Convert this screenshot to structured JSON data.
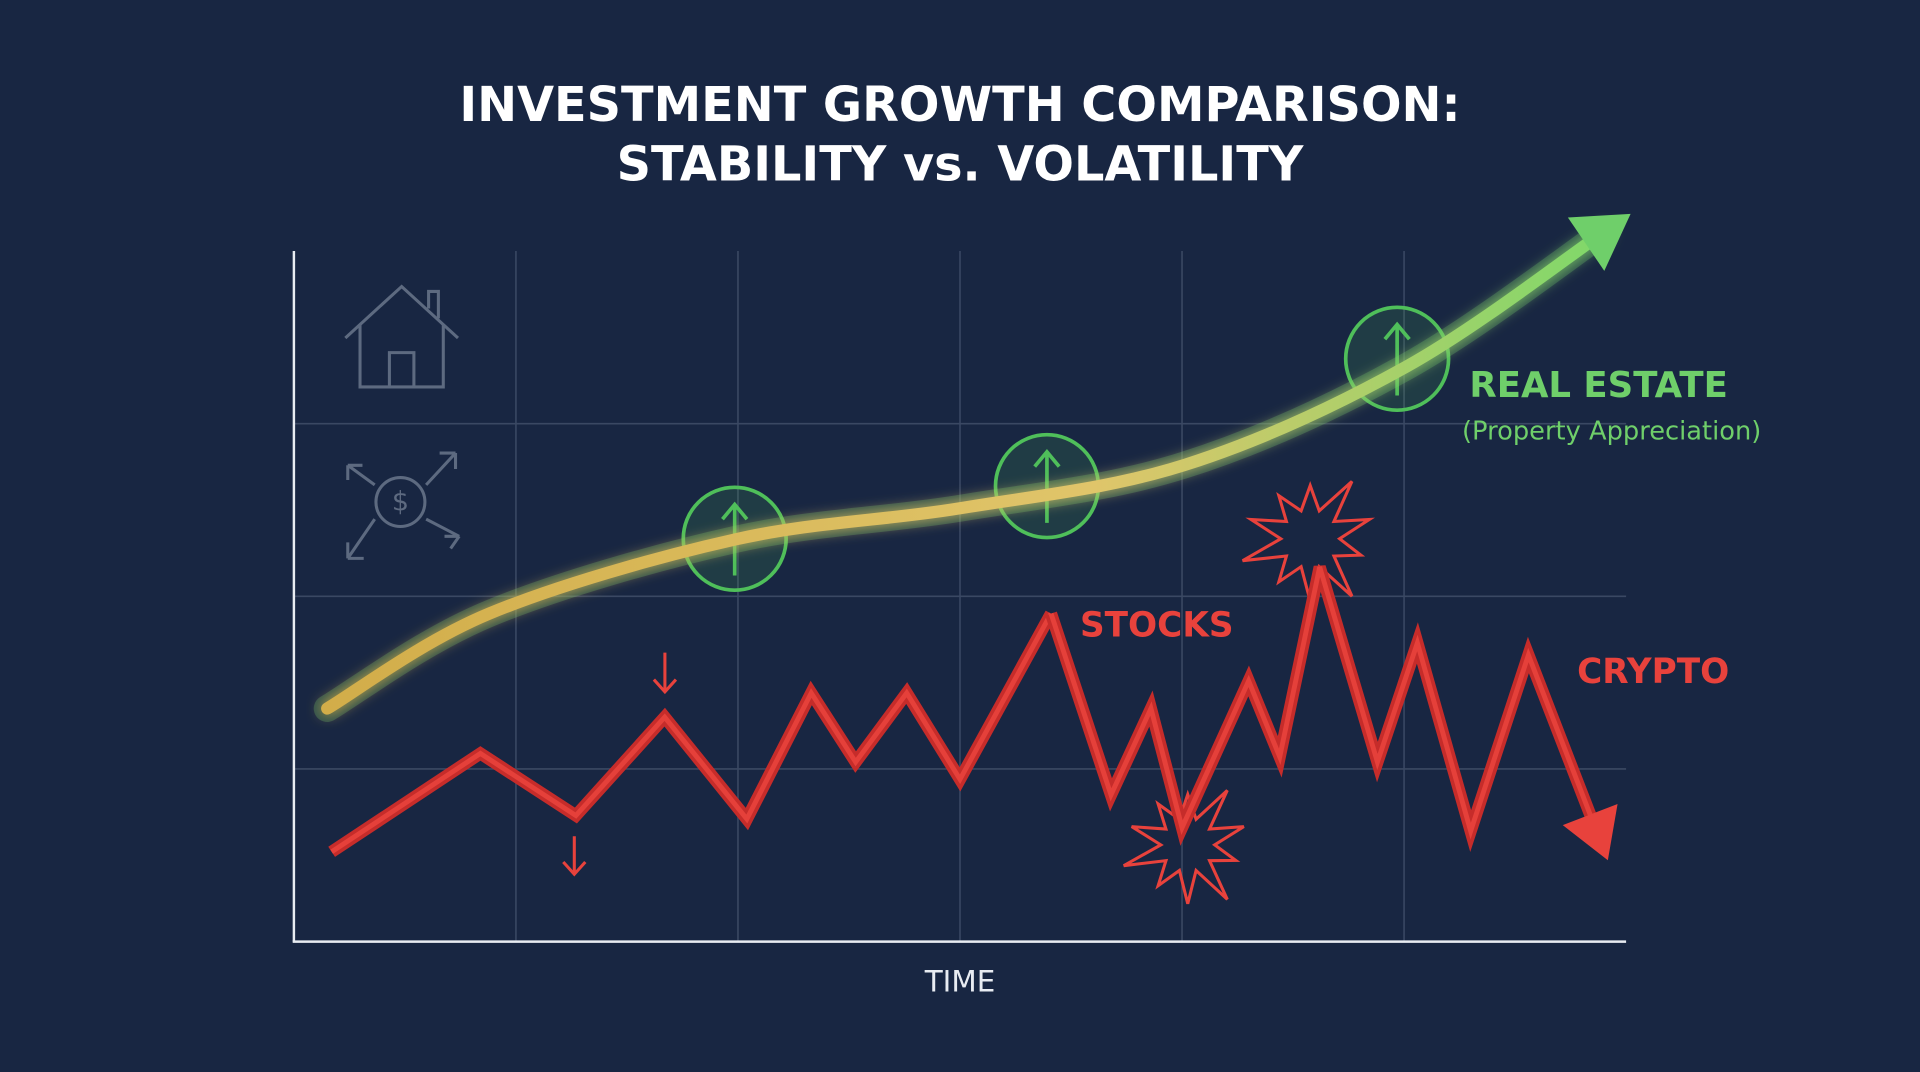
{
  "chart_data": {
    "type": "line",
    "title": [
      "INVESTMENT GROWTH COMPARISON:",
      "STABILITY vs. VOLATILITY"
    ],
    "x_label": "TIME",
    "xlim": [
      0,
      6
    ],
    "ylim": [
      0,
      4
    ],
    "xticks": [
      1,
      2,
      3,
      4,
      5
    ],
    "yticks": [
      1,
      2,
      3
    ],
    "grid": true,
    "series": [
      {
        "name": "REAL ESTATE",
        "note": "(Property Appreciation)",
        "color": "#6fcf6a",
        "x": [
          0.15,
          0.88,
          1.99,
          3.0,
          4.01,
          5.01,
          5.9
        ],
        "y": [
          1.35,
          1.9,
          2.33,
          2.51,
          2.76,
          3.33,
          4.11
        ]
      },
      {
        "name": "STOCKS",
        "color": "#e8423c",
        "x": [
          0.17,
          0.84,
          1.27,
          1.67,
          2.04,
          2.33,
          2.53,
          2.76,
          3.0,
          3.41
        ],
        "y": [
          0.52,
          1.09,
          0.73,
          1.3,
          0.71,
          1.44,
          1.04,
          1.44,
          0.94,
          1.9
        ]
      },
      {
        "name": "CRYPTO",
        "color": "#e8423c",
        "x": [
          3.41,
          3.68,
          3.86,
          4.0,
          4.3,
          4.44,
          4.62,
          4.88,
          5.06,
          5.3,
          5.56,
          5.87
        ],
        "y": [
          1.9,
          0.85,
          1.35,
          0.66,
          1.51,
          1.07,
          2.17,
          1.04,
          1.73,
          0.64,
          1.66,
          0.63
        ]
      }
    ]
  }
}
